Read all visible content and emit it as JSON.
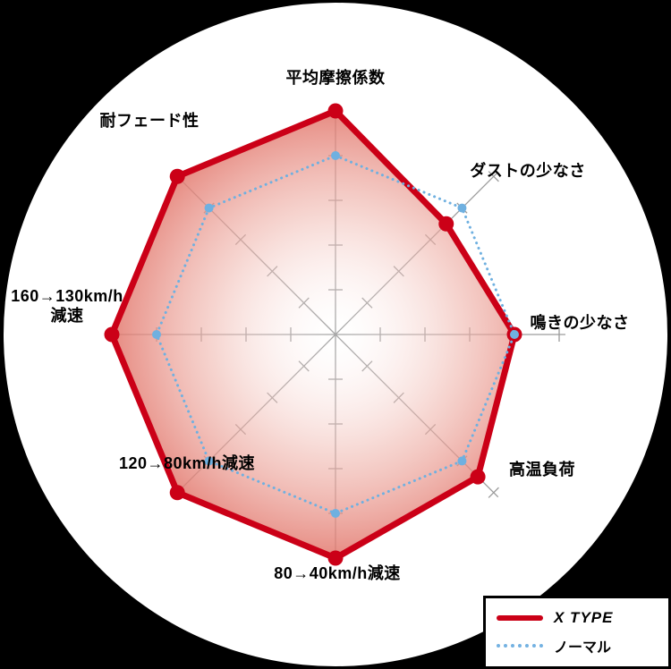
{
  "chart_data": {
    "type": "radar",
    "title": "",
    "axes": [
      "平均摩擦係数",
      "ダストの少なさ",
      "鳴きの少なさ",
      "高温負荷",
      "80→40km/h減速",
      "120→80km/h減速",
      "160→130km/h減速",
      "耐フェード性"
    ],
    "max": 5,
    "ticks_per_axis": 5,
    "grid": "spoke-ticks",
    "legend_position": "bottom-right",
    "series": [
      {
        "name": "X TYPE",
        "style": "solid",
        "color": "#cb0017",
        "fill": "red-radial-gradient",
        "values": [
          5,
          3.5,
          4,
          4.5,
          5,
          5,
          5,
          5
        ]
      },
      {
        "name": "ノーマル",
        "style": "dotted",
        "color": "#6fb0e0",
        "fill": "none",
        "values": [
          4,
          4,
          4,
          4,
          4,
          4,
          4,
          4
        ]
      }
    ]
  },
  "labels": {
    "axis_left_display": "160→130km/h\n減速"
  },
  "colors": {
    "background": "#000000",
    "chart_circle": "#ffffff",
    "axis_gray": "#9c9c9c",
    "xtype_red": "#cb0017",
    "normal_blue": "#6fb0e0"
  }
}
